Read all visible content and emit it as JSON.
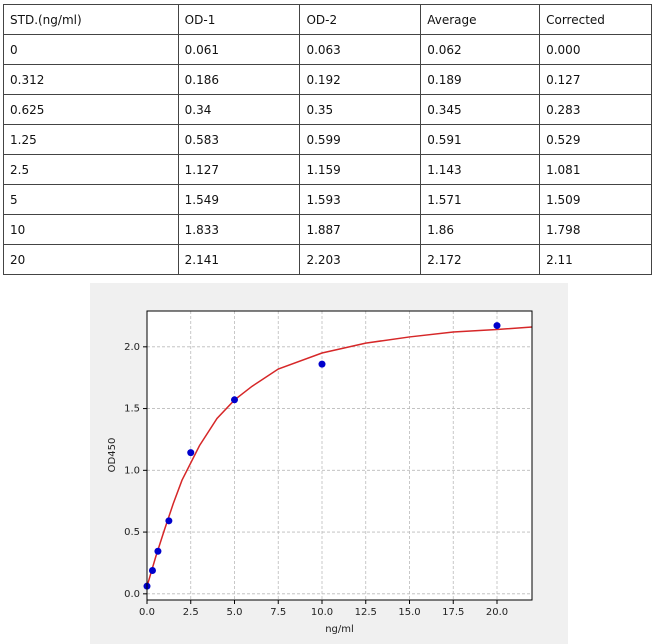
{
  "table": {
    "header": [
      "STD.(ng/ml)",
      "OD-1",
      "OD-2",
      "Average",
      "Corrected"
    ],
    "rows": [
      [
        "0",
        "0.061",
        "0.063",
        "0.062",
        "0.000"
      ],
      [
        "0.312",
        "0.186",
        "0.192",
        "0.189",
        "0.127"
      ],
      [
        "0.625",
        "0.34",
        "0.35",
        "0.345",
        "0.283"
      ],
      [
        "1.25",
        "0.583",
        "0.599",
        "0.591",
        "0.529"
      ],
      [
        "2.5",
        "1.127",
        "1.159",
        "1.143",
        "1.081"
      ],
      [
        "5",
        "1.549",
        "1.593",
        "1.571",
        "1.509"
      ],
      [
        "10",
        "1.833",
        "1.887",
        "1.86",
        "1.798"
      ],
      [
        "20",
        "2.141",
        "2.203",
        "2.172",
        "2.11"
      ]
    ]
  },
  "chart_data": {
    "type": "scatter",
    "xlabel": "ng/ml",
    "ylabel": "OD450",
    "xlim": [
      0,
      22
    ],
    "ylim": [
      -0.05,
      2.29
    ],
    "xticks": [
      {
        "value": 0,
        "label": "0.0"
      },
      2.5,
      {
        "value": 5,
        "label": "5.0"
      },
      7.5,
      {
        "value": 10,
        "label": "10.0"
      },
      12.5,
      {
        "value": 15,
        "label": "15.0"
      },
      17.5,
      {
        "value": 20,
        "label": "20.0"
      }
    ],
    "yticks": [
      {
        "value": 0,
        "label": "0.0"
      },
      0.5,
      {
        "value": 1,
        "label": "1.0"
      },
      1.5,
      {
        "value": 2,
        "label": "2.0"
      }
    ],
    "grid": true,
    "series": [
      {
        "type": "scatter",
        "color": "#0000cc",
        "x": [
          0,
          0.312,
          0.625,
          1.25,
          2.5,
          5,
          10,
          20
        ],
        "values": [
          0.062,
          0.189,
          0.345,
          0.591,
          1.143,
          1.571,
          1.86,
          2.172
        ]
      },
      {
        "type": "line",
        "color": "#d62728",
        "x": [
          0,
          0.25,
          0.5,
          1,
          1.5,
          2,
          3,
          4,
          5,
          6,
          7.5,
          10,
          12.5,
          15,
          17.5,
          20,
          22
        ],
        "values": [
          0.06,
          0.18,
          0.3,
          0.52,
          0.73,
          0.92,
          1.2,
          1.42,
          1.57,
          1.68,
          1.82,
          1.95,
          2.03,
          2.08,
          2.12,
          2.14,
          2.16
        ]
      }
    ]
  }
}
